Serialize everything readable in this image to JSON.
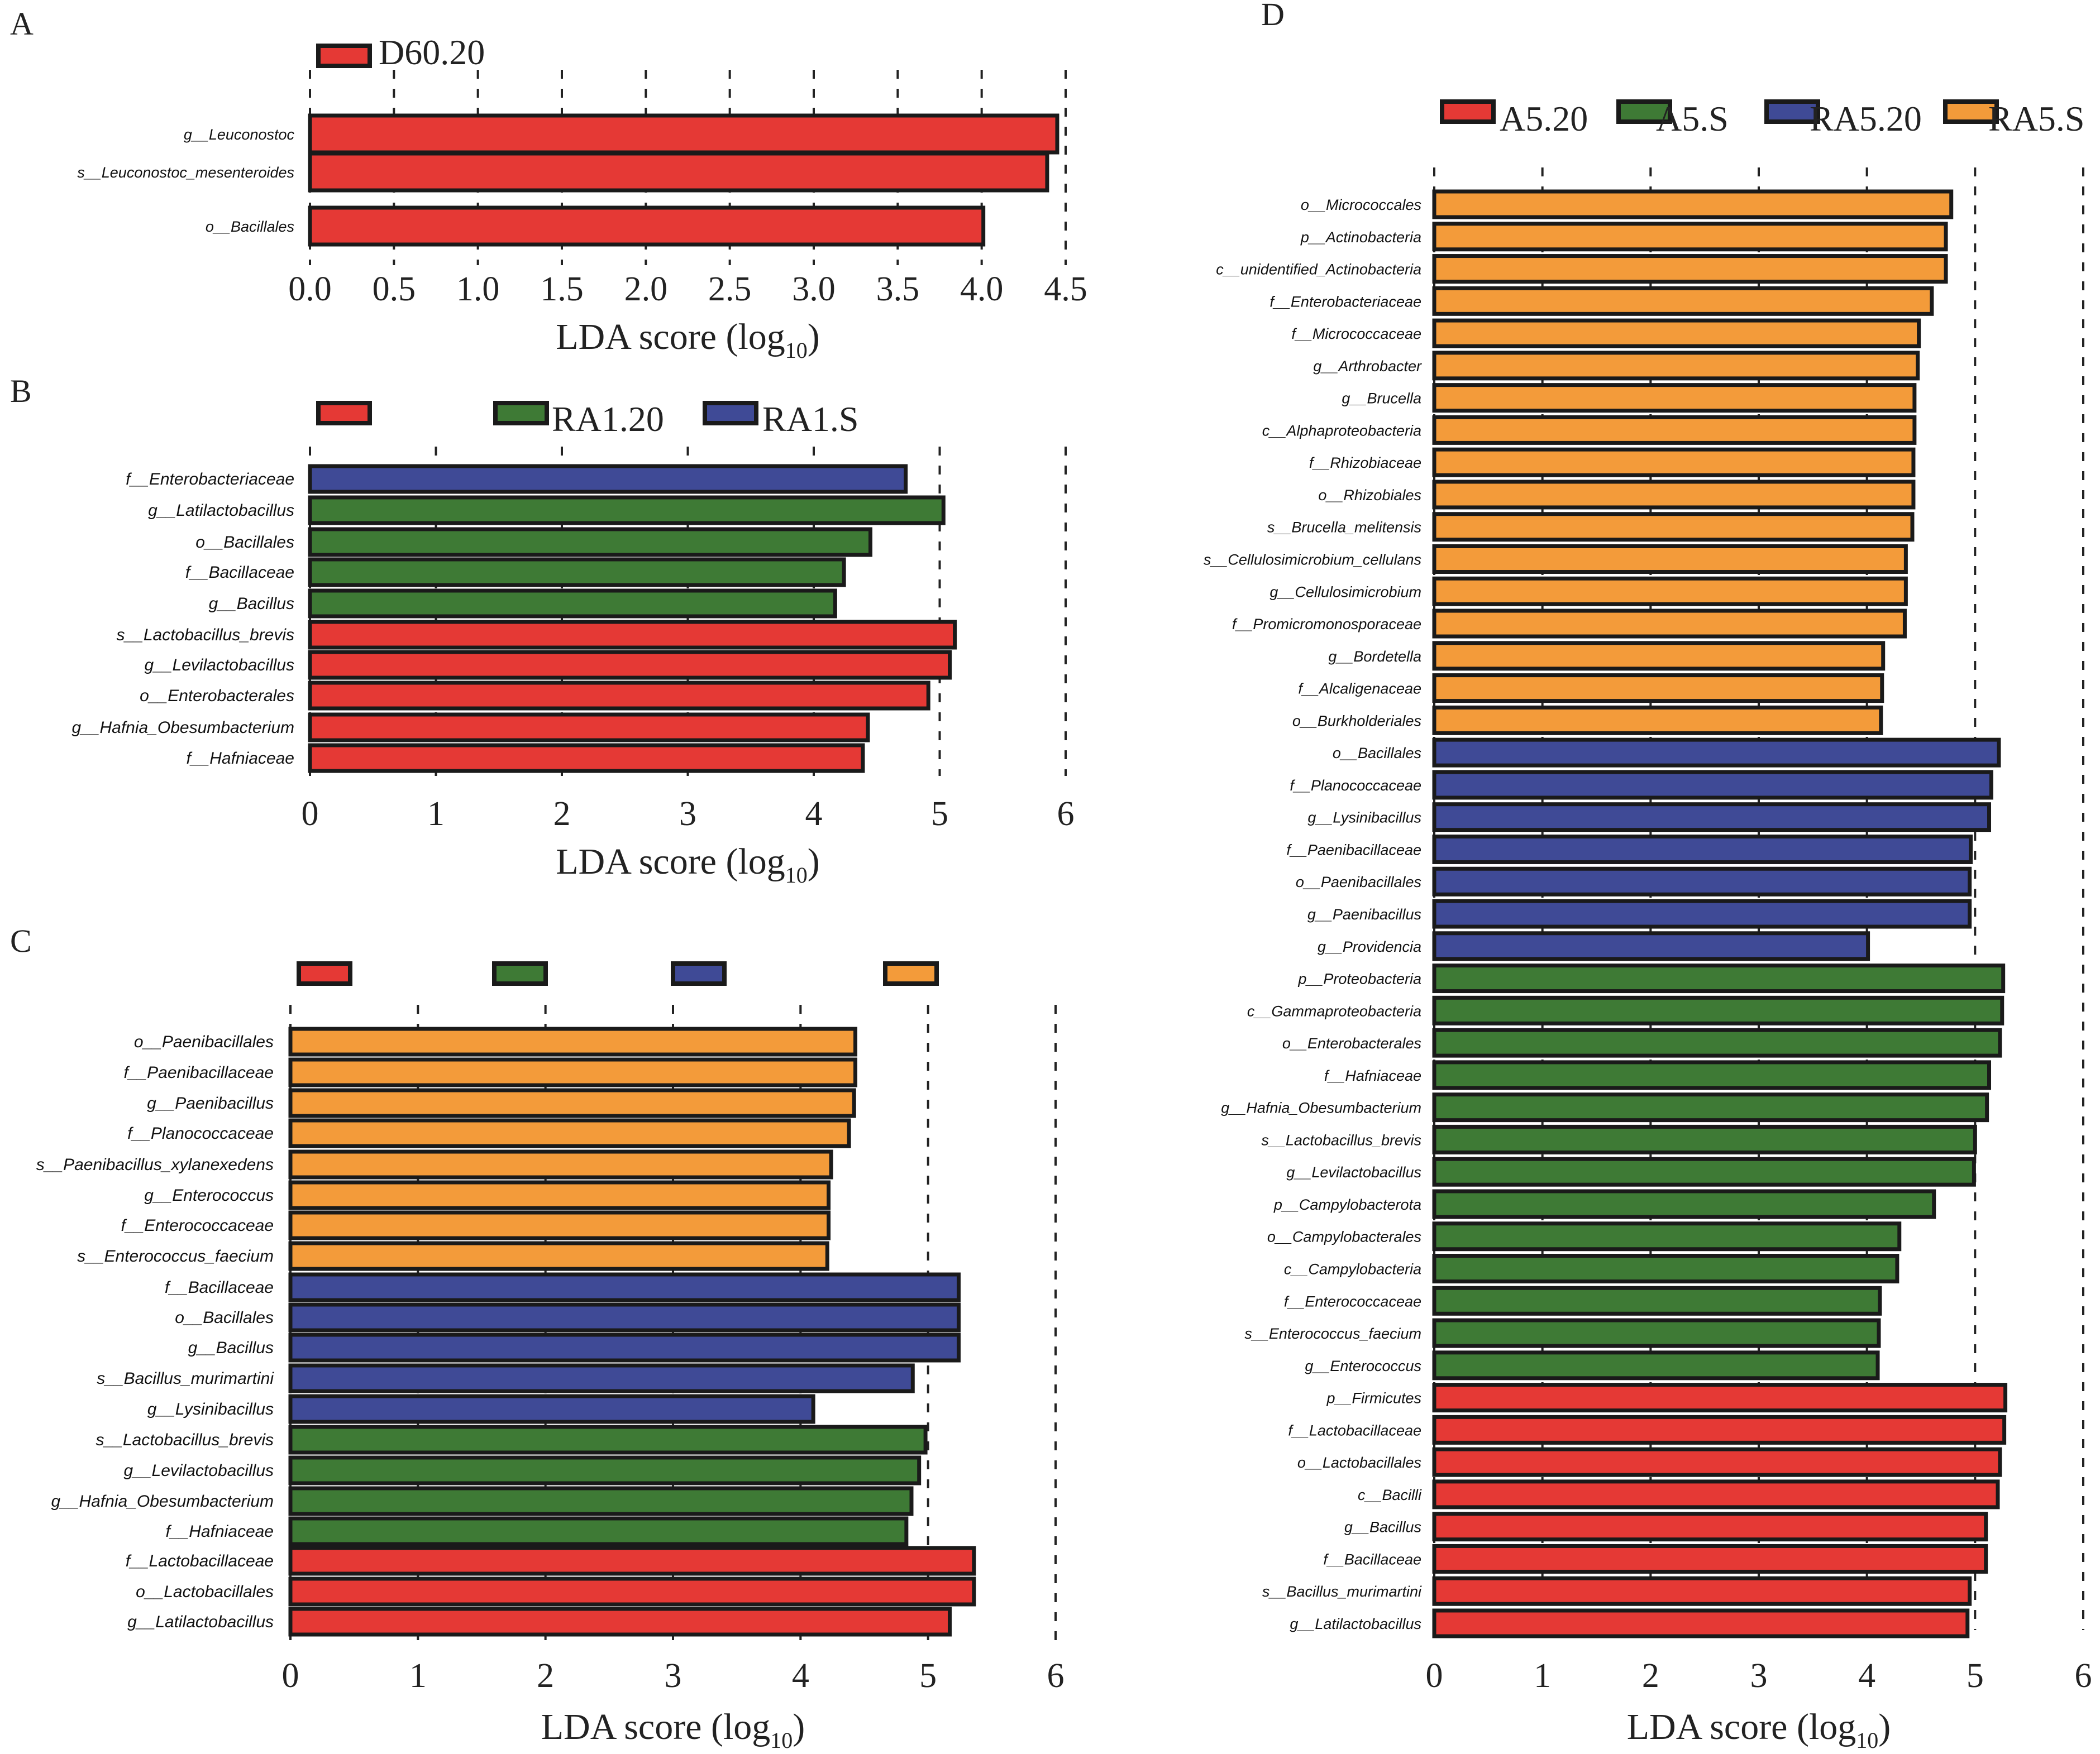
{
  "colors": {
    "A5.20": "#e53935",
    "A5.S": "#3e7a35",
    "RA5.20": "#3f4a96",
    "RA5.S": "#f39b3a",
    "border": "#1a1a1a"
  },
  "chart_data": [
    {
      "panel": "A",
      "type": "bar",
      "orientation": "horizontal",
      "xlabel": "LDA score (log10)",
      "xlim": [
        0,
        4.5
      ],
      "xticks": [
        "0.0",
        "0.5",
        "1.0",
        "1.5",
        "2.0",
        "2.5",
        "3.0",
        "3.5",
        "4.0",
        "4.5"
      ],
      "legend": [
        {
          "name": "D60.20",
          "color": "#e53935"
        }
      ],
      "categories": [
        "g__Leuconostoc",
        "s__Leuconostoc_mesenteroides",
        "o__Bacillales"
      ],
      "values": [
        4.45,
        4.39,
        4.01
      ],
      "groups": [
        "D60.20",
        "D60.20",
        "D60.20"
      ]
    },
    {
      "panel": "B",
      "type": "bar",
      "orientation": "horizontal",
      "xlabel": "LDA score (log10)",
      "xlim": [
        0,
        6
      ],
      "xticks": [
        "0",
        "1",
        "2",
        "3",
        "4",
        "5",
        "6"
      ],
      "legend": [
        {
          "name": "",
          "color": "#e53935"
        },
        {
          "name": "RA1.20",
          "color": "#3e7a35"
        },
        {
          "name": "RA1.S",
          "color": "#3f4a96"
        }
      ],
      "categories": [
        "f__Enterobacteriaceae",
        "g__Latilactobacillus",
        "o__Bacillales",
        "f__Bacillaceae",
        "g__Bacillus",
        "s__Lactobacillus_brevis",
        "g__Levilactobacillus",
        "o__Enterobacterales",
        "g__Hafnia_Obesumbacterium",
        "f__Hafniaceae"
      ],
      "values": [
        4.73,
        5.03,
        4.45,
        4.24,
        4.17,
        5.12,
        5.08,
        4.91,
        4.43,
        4.39
      ],
      "groups": [
        "RA1.S",
        "RA1.20",
        "RA1.20",
        "RA1.20",
        "RA1.20",
        "red",
        "red",
        "red",
        "red",
        "red"
      ]
    },
    {
      "panel": "C",
      "type": "bar",
      "orientation": "horizontal",
      "xlabel": "LDA score (log10)",
      "xlim": [
        0,
        6
      ],
      "xticks": [
        "0",
        "1",
        "2",
        "3",
        "4",
        "5",
        "6"
      ],
      "legend": [
        {
          "name": "",
          "color": "#e53935"
        },
        {
          "name": "",
          "color": "#3e7a35"
        },
        {
          "name": "",
          "color": "#3f4a96"
        },
        {
          "name": "",
          "color": "#f39b3a"
        }
      ],
      "categories": [
        "o__Paenibacillales",
        "f__Paenibacillaceae",
        "g__Paenibacillus",
        "f__Planococcaceae",
        "s__Paenibacillus_xylanexedens",
        "g__Enterococcus",
        "f__Enterococcaceae",
        "s__Enterococcus_faecium",
        "f__Bacillaceae",
        "o__Bacillales",
        "g__Bacillus",
        "s__Bacillus_murimartini",
        "g__Lysinibacillus",
        "s__Lactobacillus_brevis",
        "g__Levilactobacillus",
        "g__Hafnia_Obesumbacterium",
        "f__Hafniaceae",
        "f__Lactobacillaceae",
        "o__Lactobacillales",
        "g__Latilactobacillus"
      ],
      "values": [
        4.43,
        4.43,
        4.42,
        4.38,
        4.24,
        4.22,
        4.22,
        4.21,
        5.24,
        5.24,
        5.24,
        4.88,
        4.1,
        4.98,
        4.93,
        4.87,
        4.83,
        5.36,
        5.36,
        5.17
      ],
      "groups": [
        "orange",
        "orange",
        "orange",
        "orange",
        "orange",
        "orange",
        "orange",
        "orange",
        "blue",
        "blue",
        "blue",
        "blue",
        "blue",
        "green",
        "green",
        "green",
        "green",
        "red",
        "red",
        "red"
      ]
    },
    {
      "panel": "D",
      "type": "bar",
      "orientation": "horizontal",
      "xlabel": "LDA score (log10)",
      "xlim": [
        0,
        6
      ],
      "xticks": [
        "0",
        "1",
        "2",
        "3",
        "4",
        "5",
        "6"
      ],
      "legend": [
        {
          "name": "A5.20",
          "color": "#e53935"
        },
        {
          "name": "A5.S",
          "color": "#3e7a35"
        },
        {
          "name": "RA5.20",
          "color": "#3f4a96"
        },
        {
          "name": "RA5.S",
          "color": "#f39b3a"
        }
      ],
      "categories": [
        "o__Micrococcales",
        "p__Actinobacteria",
        "c__unidentified_Actinobacteria",
        "f__Enterobacteriaceae",
        "f__Micrococcaceae",
        "g__Arthrobacter",
        "g__Brucella",
        "c__Alphaproteobacteria",
        "f__Rhizobiaceae",
        "o__Rhizobiales",
        "s__Brucella_melitensis",
        "s__Cellulosimicrobium_cellulans",
        "g__Cellulosimicrobium",
        "f__Promicromonosporaceae",
        "g__Bordetella",
        "f__Alcaligenaceae",
        "o__Burkholderiales",
        "o__Bacillales",
        "f__Planococcaceae",
        "g__Lysinibacillus",
        "f__Paenibacillaceae",
        "o__Paenibacillales",
        "g__Paenibacillus",
        "g__Providencia",
        "p__Proteobacteria",
        "c__Gammaproteobacteria",
        "o__Enterobacterales",
        "f__Hafniaceae",
        "g__Hafnia_Obesumbacterium",
        "s__Lactobacillus_brevis",
        "g__Levilactobacillus",
        "p__Campylobacterota",
        "o__Campylobacterales",
        "c__Campylobacteria",
        "f__Enterococcaceae",
        "s__Enterococcus_faecium",
        "g__Enterococcus",
        "p__Firmicutes",
        "f__Lactobacillaceae",
        "o__Lactobacillales",
        "c__Bacilli",
        "g__Bacillus",
        "f__Bacillaceae",
        "s__Bacillus_murimartini",
        "g__Latilactobacillus"
      ],
      "values": [
        4.78,
        4.73,
        4.73,
        4.6,
        4.48,
        4.47,
        4.44,
        4.44,
        4.43,
        4.43,
        4.42,
        4.36,
        4.36,
        4.35,
        4.15,
        4.14,
        4.13,
        5.22,
        5.15,
        5.13,
        4.96,
        4.95,
        4.95,
        4.01,
        5.26,
        5.25,
        5.23,
        5.13,
        5.11,
        5.0,
        4.99,
        4.62,
        4.3,
        4.28,
        4.12,
        4.11,
        4.1,
        5.28,
        5.27,
        5.23,
        5.21,
        5.1,
        5.1,
        4.95,
        4.93
      ],
      "groups": [
        "RA5.S",
        "RA5.S",
        "RA5.S",
        "RA5.S",
        "RA5.S",
        "RA5.S",
        "RA5.S",
        "RA5.S",
        "RA5.S",
        "RA5.S",
        "RA5.S",
        "RA5.S",
        "RA5.S",
        "RA5.S",
        "RA5.S",
        "RA5.S",
        "RA5.S",
        "RA5.20",
        "RA5.20",
        "RA5.20",
        "RA5.20",
        "RA5.20",
        "RA5.20",
        "RA5.20",
        "A5.S",
        "A5.S",
        "A5.S",
        "A5.S",
        "A5.S",
        "A5.S",
        "A5.S",
        "A5.S",
        "A5.S",
        "A5.S",
        "A5.S",
        "A5.S",
        "A5.S",
        "A5.20",
        "A5.20",
        "A5.20",
        "A5.20",
        "A5.20",
        "A5.20",
        "A5.20",
        "A5.20"
      ]
    }
  ]
}
